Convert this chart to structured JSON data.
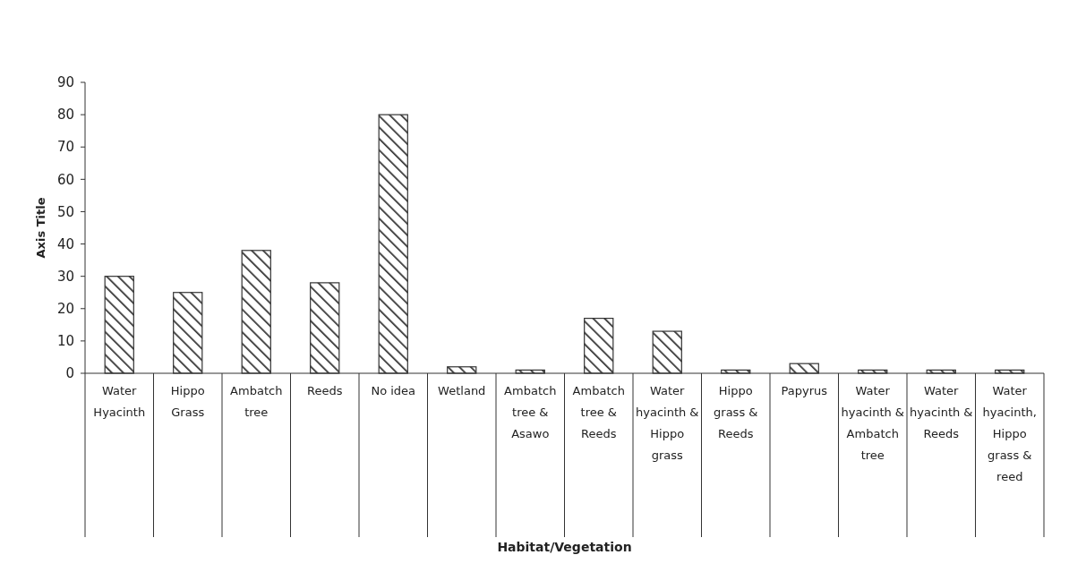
{
  "chart_data": {
    "type": "bar",
    "xlabel": "Habitat/Vegetation",
    "ylabel": "Axis Title",
    "categories": [
      "Water Hyacinth",
      "Hippo Grass",
      "Ambatch tree",
      "Reeds",
      "No idea",
      "Wetland",
      "Ambatch tree & Asawo",
      "Ambatch tree & Reeds",
      "Water hyacinth & Hippo grass",
      "Hippo grass & Reeds",
      "Papyrus",
      "Water hyacinth & Ambatch tree",
      "Water hyacinth & Reeds",
      "Water hyacinth, Hippo grass & reed"
    ],
    "values": [
      30,
      25,
      38,
      28,
      80,
      2,
      1,
      17,
      13,
      1,
      3,
      1,
      1,
      1
    ],
    "color": "#333333",
    "ylim": [
      0,
      90
    ],
    "yticks": [
      0,
      10,
      20,
      30,
      40,
      50,
      60,
      70,
      80,
      90
    ],
    "grid": false
  }
}
